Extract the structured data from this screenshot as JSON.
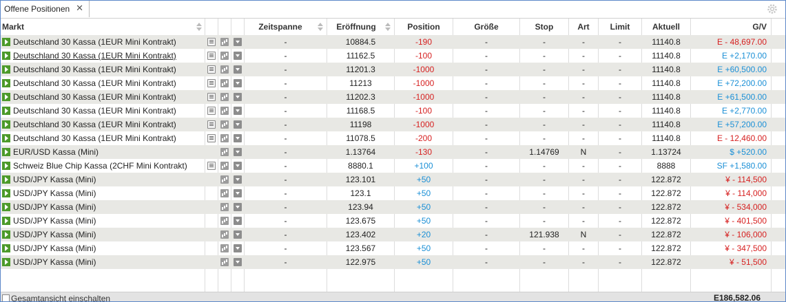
{
  "tab": {
    "label": "Offene Positionen",
    "close": "✕"
  },
  "columns": {
    "markt": "Markt",
    "zeitspanne": "Zeitspanne",
    "eroeffnung": "Eröffnung",
    "position": "Position",
    "groesse": "Größe",
    "stop": "Stop",
    "art": "Art",
    "limit": "Limit",
    "aktuell": "Aktuell",
    "gv": "G/V"
  },
  "rows": [
    {
      "markt": "Deutschland 30 Kassa (1EUR Mini Kontrakt)",
      "underline": false,
      "news": true,
      "zeitspanne": "-",
      "eroeffnung": "10884.5",
      "position": "-190",
      "posColor": "red",
      "groesse": "-",
      "stop": "-",
      "art": "-",
      "limit": "-",
      "aktuell": "11140.8",
      "gv": "E - 48,697.00",
      "gvColor": "red"
    },
    {
      "markt": "Deutschland 30 Kassa (1EUR Mini Kontrakt)",
      "underline": true,
      "news": true,
      "zeitspanne": "-",
      "eroeffnung": "11162.5",
      "position": "-100",
      "posColor": "red",
      "groesse": "-",
      "stop": "-",
      "art": "-",
      "limit": "-",
      "aktuell": "11140.8",
      "gv": "E +2,170.00",
      "gvColor": "blue"
    },
    {
      "markt": "Deutschland 30 Kassa (1EUR Mini Kontrakt)",
      "underline": false,
      "news": true,
      "zeitspanne": "-",
      "eroeffnung": "11201.3",
      "position": "-1000",
      "posColor": "red",
      "groesse": "-",
      "stop": "-",
      "art": "-",
      "limit": "-",
      "aktuell": "11140.8",
      "gv": "E +60,500.00",
      "gvColor": "blue"
    },
    {
      "markt": "Deutschland 30 Kassa (1EUR Mini Kontrakt)",
      "underline": false,
      "news": true,
      "zeitspanne": "-",
      "eroeffnung": "11213",
      "position": "-1000",
      "posColor": "red",
      "groesse": "-",
      "stop": "-",
      "art": "-",
      "limit": "-",
      "aktuell": "11140.8",
      "gv": "E +72,200.00",
      "gvColor": "blue"
    },
    {
      "markt": "Deutschland 30 Kassa (1EUR Mini Kontrakt)",
      "underline": false,
      "news": true,
      "zeitspanne": "-",
      "eroeffnung": "11202.3",
      "position": "-1000",
      "posColor": "red",
      "groesse": "-",
      "stop": "-",
      "art": "-",
      "limit": "-",
      "aktuell": "11140.8",
      "gv": "E +61,500.00",
      "gvColor": "blue"
    },
    {
      "markt": "Deutschland 30 Kassa (1EUR Mini Kontrakt)",
      "underline": false,
      "news": true,
      "zeitspanne": "-",
      "eroeffnung": "11168.5",
      "position": "-100",
      "posColor": "red",
      "groesse": "-",
      "stop": "-",
      "art": "-",
      "limit": "-",
      "aktuell": "11140.8",
      "gv": "E +2,770.00",
      "gvColor": "blue"
    },
    {
      "markt": "Deutschland 30 Kassa (1EUR Mini Kontrakt)",
      "underline": false,
      "news": true,
      "zeitspanne": "-",
      "eroeffnung": "11198",
      "position": "-1000",
      "posColor": "red",
      "groesse": "-",
      "stop": "-",
      "art": "-",
      "limit": "-",
      "aktuell": "11140.8",
      "gv": "E +57,200.00",
      "gvColor": "blue"
    },
    {
      "markt": "Deutschland 30 Kassa (1EUR Mini Kontrakt)",
      "underline": false,
      "news": true,
      "zeitspanne": "-",
      "eroeffnung": "11078.5",
      "position": "-200",
      "posColor": "red",
      "groesse": "-",
      "stop": "-",
      "art": "-",
      "limit": "-",
      "aktuell": "11140.8",
      "gv": "E - 12,460.00",
      "gvColor": "red"
    },
    {
      "markt": "EUR/USD Kassa (Mini)",
      "underline": false,
      "news": false,
      "zeitspanne": "-",
      "eroeffnung": "1.13764",
      "position": "-130",
      "posColor": "red",
      "groesse": "-",
      "stop": "1.14769",
      "art": "N",
      "limit": "-",
      "aktuell": "1.13724",
      "gv": "$ +520.00",
      "gvColor": "blue"
    },
    {
      "markt": "Schweiz Blue Chip Kassa (2CHF Mini Kontrakt)",
      "underline": false,
      "news": true,
      "zeitspanne": "-",
      "eroeffnung": "8880.1",
      "position": "+100",
      "posColor": "blue",
      "groesse": "-",
      "stop": "-",
      "art": "-",
      "limit": "-",
      "aktuell": "8888",
      "gv": "SF +1,580.00",
      "gvColor": "blue"
    },
    {
      "markt": "USD/JPY Kassa (Mini)",
      "underline": false,
      "news": false,
      "zeitspanne": "-",
      "eroeffnung": "123.101",
      "position": "+50",
      "posColor": "blue",
      "groesse": "-",
      "stop": "-",
      "art": "-",
      "limit": "-",
      "aktuell": "122.872",
      "gv": "¥ - 114,500",
      "gvColor": "red"
    },
    {
      "markt": "USD/JPY Kassa (Mini)",
      "underline": false,
      "news": false,
      "zeitspanne": "-",
      "eroeffnung": "123.1",
      "position": "+50",
      "posColor": "blue",
      "groesse": "-",
      "stop": "-",
      "art": "-",
      "limit": "-",
      "aktuell": "122.872",
      "gv": "¥ - 114,000",
      "gvColor": "red"
    },
    {
      "markt": "USD/JPY Kassa (Mini)",
      "underline": false,
      "news": false,
      "zeitspanne": "-",
      "eroeffnung": "123.94",
      "position": "+50",
      "posColor": "blue",
      "groesse": "-",
      "stop": "-",
      "art": "-",
      "limit": "-",
      "aktuell": "122.872",
      "gv": "¥ - 534,000",
      "gvColor": "red"
    },
    {
      "markt": "USD/JPY Kassa (Mini)",
      "underline": false,
      "news": false,
      "zeitspanne": "-",
      "eroeffnung": "123.675",
      "position": "+50",
      "posColor": "blue",
      "groesse": "-",
      "stop": "-",
      "art": "-",
      "limit": "-",
      "aktuell": "122.872",
      "gv": "¥ - 401,500",
      "gvColor": "red"
    },
    {
      "markt": "USD/JPY Kassa (Mini)",
      "underline": false,
      "news": false,
      "zeitspanne": "-",
      "eroeffnung": "123.402",
      "position": "+20",
      "posColor": "blue",
      "groesse": "-",
      "stop": "121.938",
      "art": "N",
      "limit": "-",
      "aktuell": "122.872",
      "gv": "¥ - 106,000",
      "gvColor": "red"
    },
    {
      "markt": "USD/JPY Kassa (Mini)",
      "underline": false,
      "news": false,
      "zeitspanne": "-",
      "eroeffnung": "123.567",
      "position": "+50",
      "posColor": "blue",
      "groesse": "-",
      "stop": "-",
      "art": "-",
      "limit": "-",
      "aktuell": "122.872",
      "gv": "¥ - 347,500",
      "gvColor": "red"
    },
    {
      "markt": "USD/JPY Kassa (Mini)",
      "underline": false,
      "news": false,
      "zeitspanne": "-",
      "eroeffnung": "122.975",
      "position": "+50",
      "posColor": "blue",
      "groesse": "-",
      "stop": "-",
      "art": "-",
      "limit": "-",
      "aktuell": "122.872",
      "gv": "¥ - 51,500",
      "gvColor": "red"
    }
  ],
  "footer": {
    "toggle_label": "Gesamtansicht einschalten",
    "total": "E186,582.06"
  },
  "colors": {
    "red": "#d62020",
    "blue": "#1a8fd6",
    "play": "#4c9a2a",
    "alt_row": "#e8e8e4"
  },
  "icons": {
    "play": "play-icon",
    "news": "news-icon",
    "chart": "chart-icon",
    "dropdown": "dropdown-icon",
    "settings": "gear-icon",
    "sort": "sort-icon"
  }
}
